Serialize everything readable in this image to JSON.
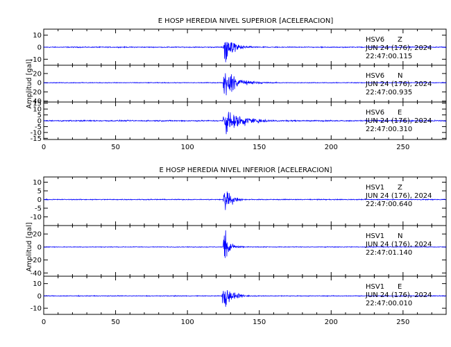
{
  "chart_data": [
    {
      "type": "line",
      "title": "E HOSP HEREDIA NIVEL SUPERIOR [ACELERACION]",
      "ylabel": "Amplitud [gal]",
      "xlim": [
        0,
        280
      ],
      "xticks": [
        0,
        50,
        100,
        150,
        200,
        250
      ],
      "series_color": "#0000ff",
      "panels": [
        {
          "station": "HSV6",
          "component": "Z",
          "date": "JUN 24 (176), 2024",
          "time": "22:47:00.115",
          "ylim": [
            -15,
            15
          ],
          "yticks": [
            10,
            0,
            -10
          ],
          "onset": 125,
          "peak": 16,
          "decay": 6,
          "noise": 0.3
        },
        {
          "station": "HSV6",
          "component": "N",
          "date": "JUN 24 (176), 2024",
          "time": "22:47:00.935",
          "ylim": [
            -42,
            38
          ],
          "yticks": [
            20,
            0,
            -20,
            -40
          ],
          "onset": 125,
          "peak": 38,
          "decay": 9,
          "noise": 0.6
        },
        {
          "station": "HSV6",
          "component": "E",
          "date": "JUN 24 (176), 2024",
          "time": "22:47:00.310",
          "ylim": [
            -16,
            16
          ],
          "yticks": [
            15,
            10,
            5,
            0,
            -5,
            -10,
            -15
          ],
          "onset": 125,
          "peak": 14,
          "decay": 12,
          "noise": 0.4
        }
      ]
    },
    {
      "type": "line",
      "title": "E HOSP HEREDIA NIVEL INFERIOR [ACELERACION]",
      "ylabel": "Amplitud [gal]",
      "xlim": [
        0,
        280
      ],
      "xticks": [
        0,
        50,
        100,
        150,
        200,
        250
      ],
      "series_color": "#0000ff",
      "panels": [
        {
          "station": "HSV1",
          "component": "Z",
          "date": "JUN 24 (176), 2024",
          "time": "22:47:00.640",
          "ylim": [
            -15,
            13
          ],
          "yticks": [
            10,
            5,
            0,
            -5,
            -10
          ],
          "onset": 125,
          "peak": 13,
          "decay": 4,
          "noise": 0.2
        },
        {
          "station": "HSV1",
          "component": "N",
          "date": "JUN 24 (176), 2024",
          "time": "22:47:01.140",
          "ylim": [
            -45,
            33
          ],
          "yticks": [
            20,
            0,
            -20,
            -40
          ],
          "onset": 125,
          "peak": 42,
          "decay": 3.5,
          "noise": 0.4
        },
        {
          "station": "HSV1",
          "component": "E",
          "date": "JUN 24 (176), 2024",
          "time": "22:47:00.010",
          "ylim": [
            -15,
            16
          ],
          "yticks": [
            10,
            0,
            -10
          ],
          "onset": 124,
          "peak": 15,
          "decay": 6,
          "noise": 0.25
        }
      ]
    }
  ]
}
